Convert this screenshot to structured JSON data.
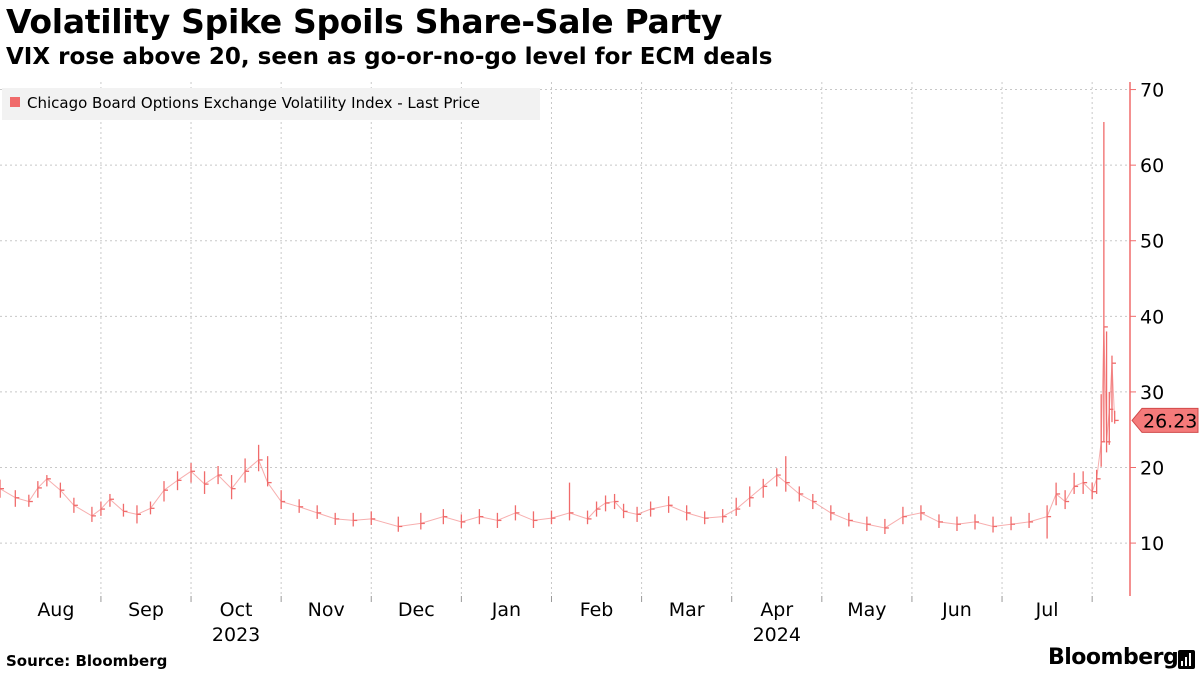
{
  "header": {
    "title": "Volatility Spike Spoils Share-Sale Party",
    "subtitle": "VIX rose above 20, seen as go-or-no-go level for ECM deals"
  },
  "footer": {
    "source": "Source: Bloomberg",
    "brand": "Bloomberg"
  },
  "colors": {
    "series": "#f06b6b",
    "grid": "#c8c8c8",
    "axis": "#f06b6b",
    "legend_bg": "#f2f2f2",
    "label_fill": "#f47a7a"
  },
  "chart_data": {
    "type": "line",
    "title": "Volatility Spike Spoils Share-Sale Party",
    "subtitle": "VIX rose above 20, seen as go-or-no-go level for ECM deals",
    "series_name": "Chicago Board Options Exchange Volatility Index - Last Price",
    "legend_position": "top-left",
    "last_value_label": "26.23",
    "last_value": 26.23,
    "ylim": [
      3,
      71
    ],
    "yticks": [
      10,
      20,
      30,
      40,
      50,
      60,
      70
    ],
    "ytick_labels": [
      "10",
      "20",
      "30",
      "40",
      "50",
      "60",
      "70"
    ],
    "y_axis_side": "right",
    "grid": true,
    "xlim": [
      -0.12,
      12.42
    ],
    "x_ticks": [
      {
        "label": "Aug",
        "pos": 0.5
      },
      {
        "label": "Sep",
        "pos": 1.5
      },
      {
        "label": "Oct",
        "pos": 2.5
      },
      {
        "label": "Nov",
        "pos": 3.5
      },
      {
        "label": "Dec",
        "pos": 4.5
      },
      {
        "label": "Jan",
        "pos": 5.5
      },
      {
        "label": "Feb",
        "pos": 6.5
      },
      {
        "label": "Mar",
        "pos": 7.5
      },
      {
        "label": "Apr",
        "pos": 8.5
      },
      {
        "label": "May",
        "pos": 9.5
      },
      {
        "label": "Jun",
        "pos": 10.5
      },
      {
        "label": "Jul",
        "pos": 11.5
      }
    ],
    "x_gridlines": [
      1,
      2,
      3,
      4,
      5,
      6,
      7,
      8,
      9,
      10,
      11,
      12
    ],
    "year_labels": [
      {
        "label": "2023",
        "pos": 2.5
      },
      {
        "label": "2024",
        "pos": 8.5
      }
    ],
    "x_units": "months since 1 Aug 2023 (approximate)",
    "x": [
      -0.12,
      0.05,
      0.2,
      0.3,
      0.4,
      0.55,
      0.7,
      0.9,
      1.0,
      1.1,
      1.25,
      1.4,
      1.55,
      1.7,
      1.85,
      2.0,
      2.15,
      2.3,
      2.45,
      2.6,
      2.75,
      2.85,
      3.0,
      3.2,
      3.4,
      3.6,
      3.8,
      4.0,
      4.3,
      4.55,
      4.8,
      5.0,
      5.2,
      5.4,
      5.6,
      5.8,
      6.0,
      6.2,
      6.4,
      6.5,
      6.6,
      6.7,
      6.8,
      6.95,
      7.1,
      7.3,
      7.5,
      7.7,
      7.9,
      8.05,
      8.2,
      8.35,
      8.5,
      8.6,
      8.75,
      8.9,
      9.1,
      9.3,
      9.5,
      9.7,
      9.9,
      10.1,
      10.3,
      10.5,
      10.7,
      10.9,
      11.1,
      11.3,
      11.5,
      11.6,
      11.7,
      11.8,
      11.9,
      12.0,
      12.05,
      12.1,
      12.13,
      12.16,
      12.19,
      12.22,
      12.25
    ],
    "values": [
      17.2,
      16.0,
      15.5,
      17.3,
      18.5,
      17.0,
      15.0,
      13.6,
      14.5,
      15.8,
      14.2,
      13.8,
      14.6,
      17.0,
      18.3,
      19.5,
      17.8,
      19.0,
      17.2,
      19.5,
      21.0,
      18.0,
      15.5,
      14.8,
      14.0,
      13.2,
      13.0,
      13.2,
      12.2,
      12.6,
      13.5,
      12.8,
      13.5,
      13.0,
      14.0,
      13.0,
      13.3,
      14.0,
      13.2,
      14.5,
      15.3,
      15.5,
      14.2,
      13.8,
      14.5,
      15.0,
      14.0,
      13.3,
      13.5,
      14.5,
      16.0,
      17.5,
      19.0,
      18.0,
      16.5,
      15.5,
      14.0,
      13.0,
      12.5,
      12.0,
      13.5,
      14.0,
      12.8,
      12.5,
      12.8,
      12.2,
      12.5,
      12.8,
      13.5,
      16.5,
      15.5,
      17.5,
      18.0,
      16.8,
      18.5,
      23.4,
      38.6,
      23.4,
      27.7,
      33.8,
      26.23
    ],
    "highs": [
      18.4,
      17.0,
      16.4,
      18.2,
      19.0,
      18.0,
      16.0,
      14.8,
      15.5,
      16.5,
      15.2,
      15.0,
      15.5,
      18.2,
      19.5,
      20.6,
      19.5,
      20.2,
      19.0,
      21.2,
      23.0,
      21.5,
      17.0,
      15.8,
      15.0,
      14.0,
      14.0,
      14.2,
      13.5,
      14.0,
      14.5,
      13.8,
      14.5,
      14.0,
      15.0,
      14.2,
      14.3,
      18.0,
      14.3,
      15.5,
      16.3,
      16.5,
      15.2,
      14.8,
      15.5,
      16.2,
      15.0,
      14.2,
      14.5,
      16.0,
      17.5,
      18.5,
      19.9,
      21.5,
      17.5,
      16.5,
      15.0,
      14.0,
      13.5,
      13.2,
      14.8,
      15.0,
      13.8,
      13.5,
      13.8,
      13.5,
      13.5,
      14.0,
      15.0,
      18.0,
      17.0,
      19.3,
      19.5,
      18.0,
      19.7,
      29.7,
      65.7,
      38.0,
      30.0,
      34.8,
      27.5
    ],
    "lows": [
      16.0,
      14.8,
      14.8,
      16.0,
      17.5,
      16.0,
      14.0,
      12.8,
      13.6,
      14.8,
      13.5,
      12.6,
      13.8,
      15.5,
      17.0,
      18.0,
      16.5,
      17.8,
      15.8,
      18.0,
      19.5,
      17.5,
      14.5,
      14.0,
      13.2,
      12.4,
      12.2,
      12.4,
      11.5,
      11.8,
      12.5,
      12.0,
      12.5,
      12.0,
      13.0,
      12.0,
      12.5,
      13.0,
      12.5,
      13.5,
      14.2,
      14.5,
      13.3,
      12.8,
      13.5,
      14.0,
      13.0,
      12.5,
      12.7,
      13.6,
      14.8,
      16.0,
      17.5,
      16.8,
      15.5,
      14.5,
      13.0,
      12.2,
      11.6,
      11.2,
      12.5,
      13.0,
      12.0,
      11.6,
      11.8,
      11.4,
      11.7,
      12.0,
      10.6,
      15.0,
      14.5,
      16.5,
      16.5,
      15.8,
      16.5,
      20.1,
      23.4,
      22.0,
      23.0,
      26.0,
      25.8
    ]
  }
}
